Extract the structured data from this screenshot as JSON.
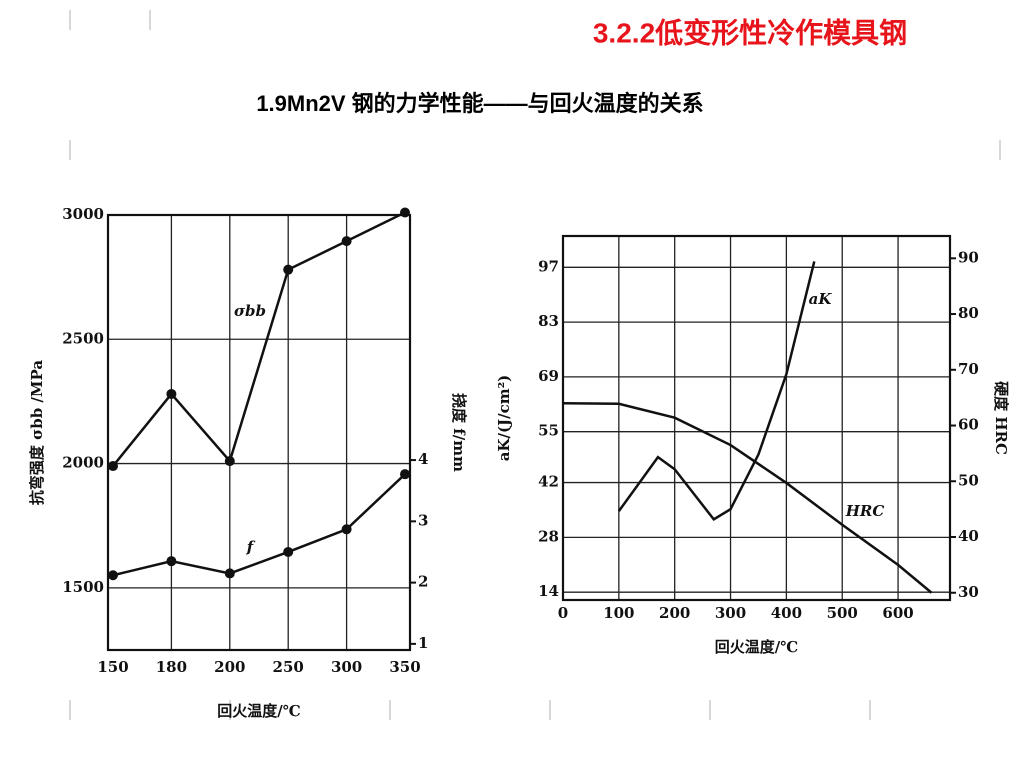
{
  "title": "3.2.2低变形性冷作模具钢",
  "subtitle": "1.9Mn2V 钢的力学性能——与回火温度的关系",
  "chart_data": [
    {
      "type": "line",
      "categories": [
        "150",
        "180",
        "200",
        "250",
        "300",
        "350"
      ],
      "x_label": "回火温度/℃",
      "y_label": "抗弯强度 σbb /MPa",
      "y2_label": "挠度 f/mm",
      "ylim": [
        1250,
        3000
      ],
      "yticks": [
        1500,
        2000,
        2500,
        3000
      ],
      "y2lim": [
        0.9,
        8
      ],
      "y2ticks": [
        1,
        2,
        3,
        4
      ],
      "grid": true,
      "markers": true,
      "series": [
        {
          "name": "σbb",
          "color": "#111111",
          "values": [
            1990,
            2280,
            2010,
            2780,
            2895,
            3010
          ]
        },
        {
          "name": "f",
          "color": "#111111",
          "axis": "y2",
          "values": [
            2.12,
            2.35,
            2.15,
            2.5,
            2.87,
            3.77
          ]
        }
      ]
    },
    {
      "type": "line",
      "x_label": "回火温度/℃",
      "y_label": "aK/(J/cm²)",
      "y2_label": "硬度 HRC",
      "xlim": [
        0,
        693
      ],
      "xticks": [
        0,
        100,
        200,
        300,
        400,
        500,
        600
      ],
      "ylim": [
        12,
        105
      ],
      "yticks": [
        14,
        28,
        42,
        55,
        69,
        83,
        97
      ],
      "y2lim": [
        28.7,
        94
      ],
      "y2ticks": [
        30,
        40,
        50,
        60,
        70,
        80,
        90
      ],
      "grid": true,
      "markers": false,
      "series": [
        {
          "name": "aK",
          "color": "#111111",
          "x": [
            100,
            170,
            200,
            270,
            300,
            350,
            400,
            450
          ],
          "values": [
            34.7,
            48.5,
            45.4,
            32.6,
            35.2,
            49.2,
            69.7,
            98.5
          ]
        },
        {
          "name": "HRC",
          "color": "#111111",
          "axis": "y2",
          "x": [
            0,
            100,
            200,
            300,
            400,
            500,
            600,
            660
          ],
          "values": [
            64,
            63.9,
            61.4,
            56.5,
            49.7,
            42.2,
            35,
            30
          ]
        }
      ]
    }
  ]
}
